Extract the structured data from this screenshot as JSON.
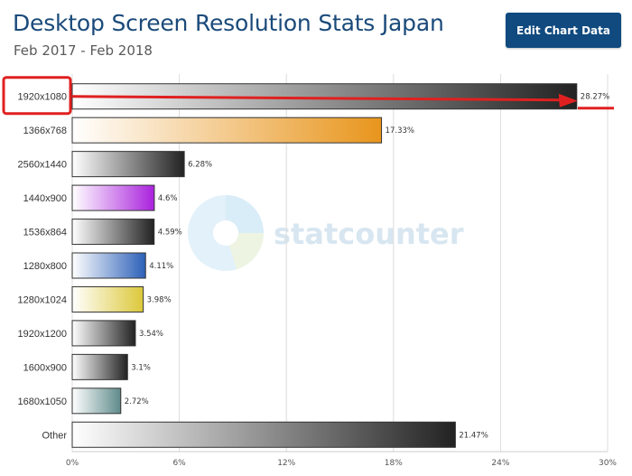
{
  "header": {
    "title": "Desktop Screen Resolution Stats Japan",
    "subtitle": "Feb 2017 - Feb 2018",
    "edit_button_label": "Edit Chart Data"
  },
  "watermark": {
    "text": "statcounter"
  },
  "chart_data": {
    "type": "bar",
    "orientation": "horizontal",
    "title": "Desktop Screen Resolution Stats Japan",
    "subtitle": "Feb 2017 - Feb 2018",
    "xlabel": "",
    "ylabel": "",
    "xlim": [
      0,
      30
    ],
    "x_ticks": [
      0,
      6,
      12,
      18,
      24,
      30
    ],
    "x_tick_labels": [
      "0%",
      "6%",
      "12%",
      "18%",
      "24%",
      "30%"
    ],
    "grid": true,
    "categories": [
      "1920x1080",
      "1366x768",
      "2560x1440",
      "1440x900",
      "1536x864",
      "1280x800",
      "1280x1024",
      "1920x1200",
      "1600x900",
      "1680x1050",
      "Other"
    ],
    "values": [
      28.27,
      17.33,
      6.28,
      4.6,
      4.59,
      4.11,
      3.98,
      3.54,
      3.1,
      2.72,
      21.47
    ],
    "value_labels": [
      "28.27%",
      "17.33%",
      "6.28%",
      "4.6%",
      "4.59%",
      "4.11%",
      "3.98%",
      "3.54%",
      "3.1%",
      "2.72%",
      "21.47%"
    ],
    "bar_colors": [
      "#222222",
      "#e8951c",
      "#222222",
      "#aa22dd",
      "#222222",
      "#2c60b8",
      "#dcc83a",
      "#222222",
      "#222222",
      "#5f8a8a",
      "#222222"
    ],
    "highlight": {
      "category": "1920x1080",
      "color": "#e02020"
    }
  }
}
